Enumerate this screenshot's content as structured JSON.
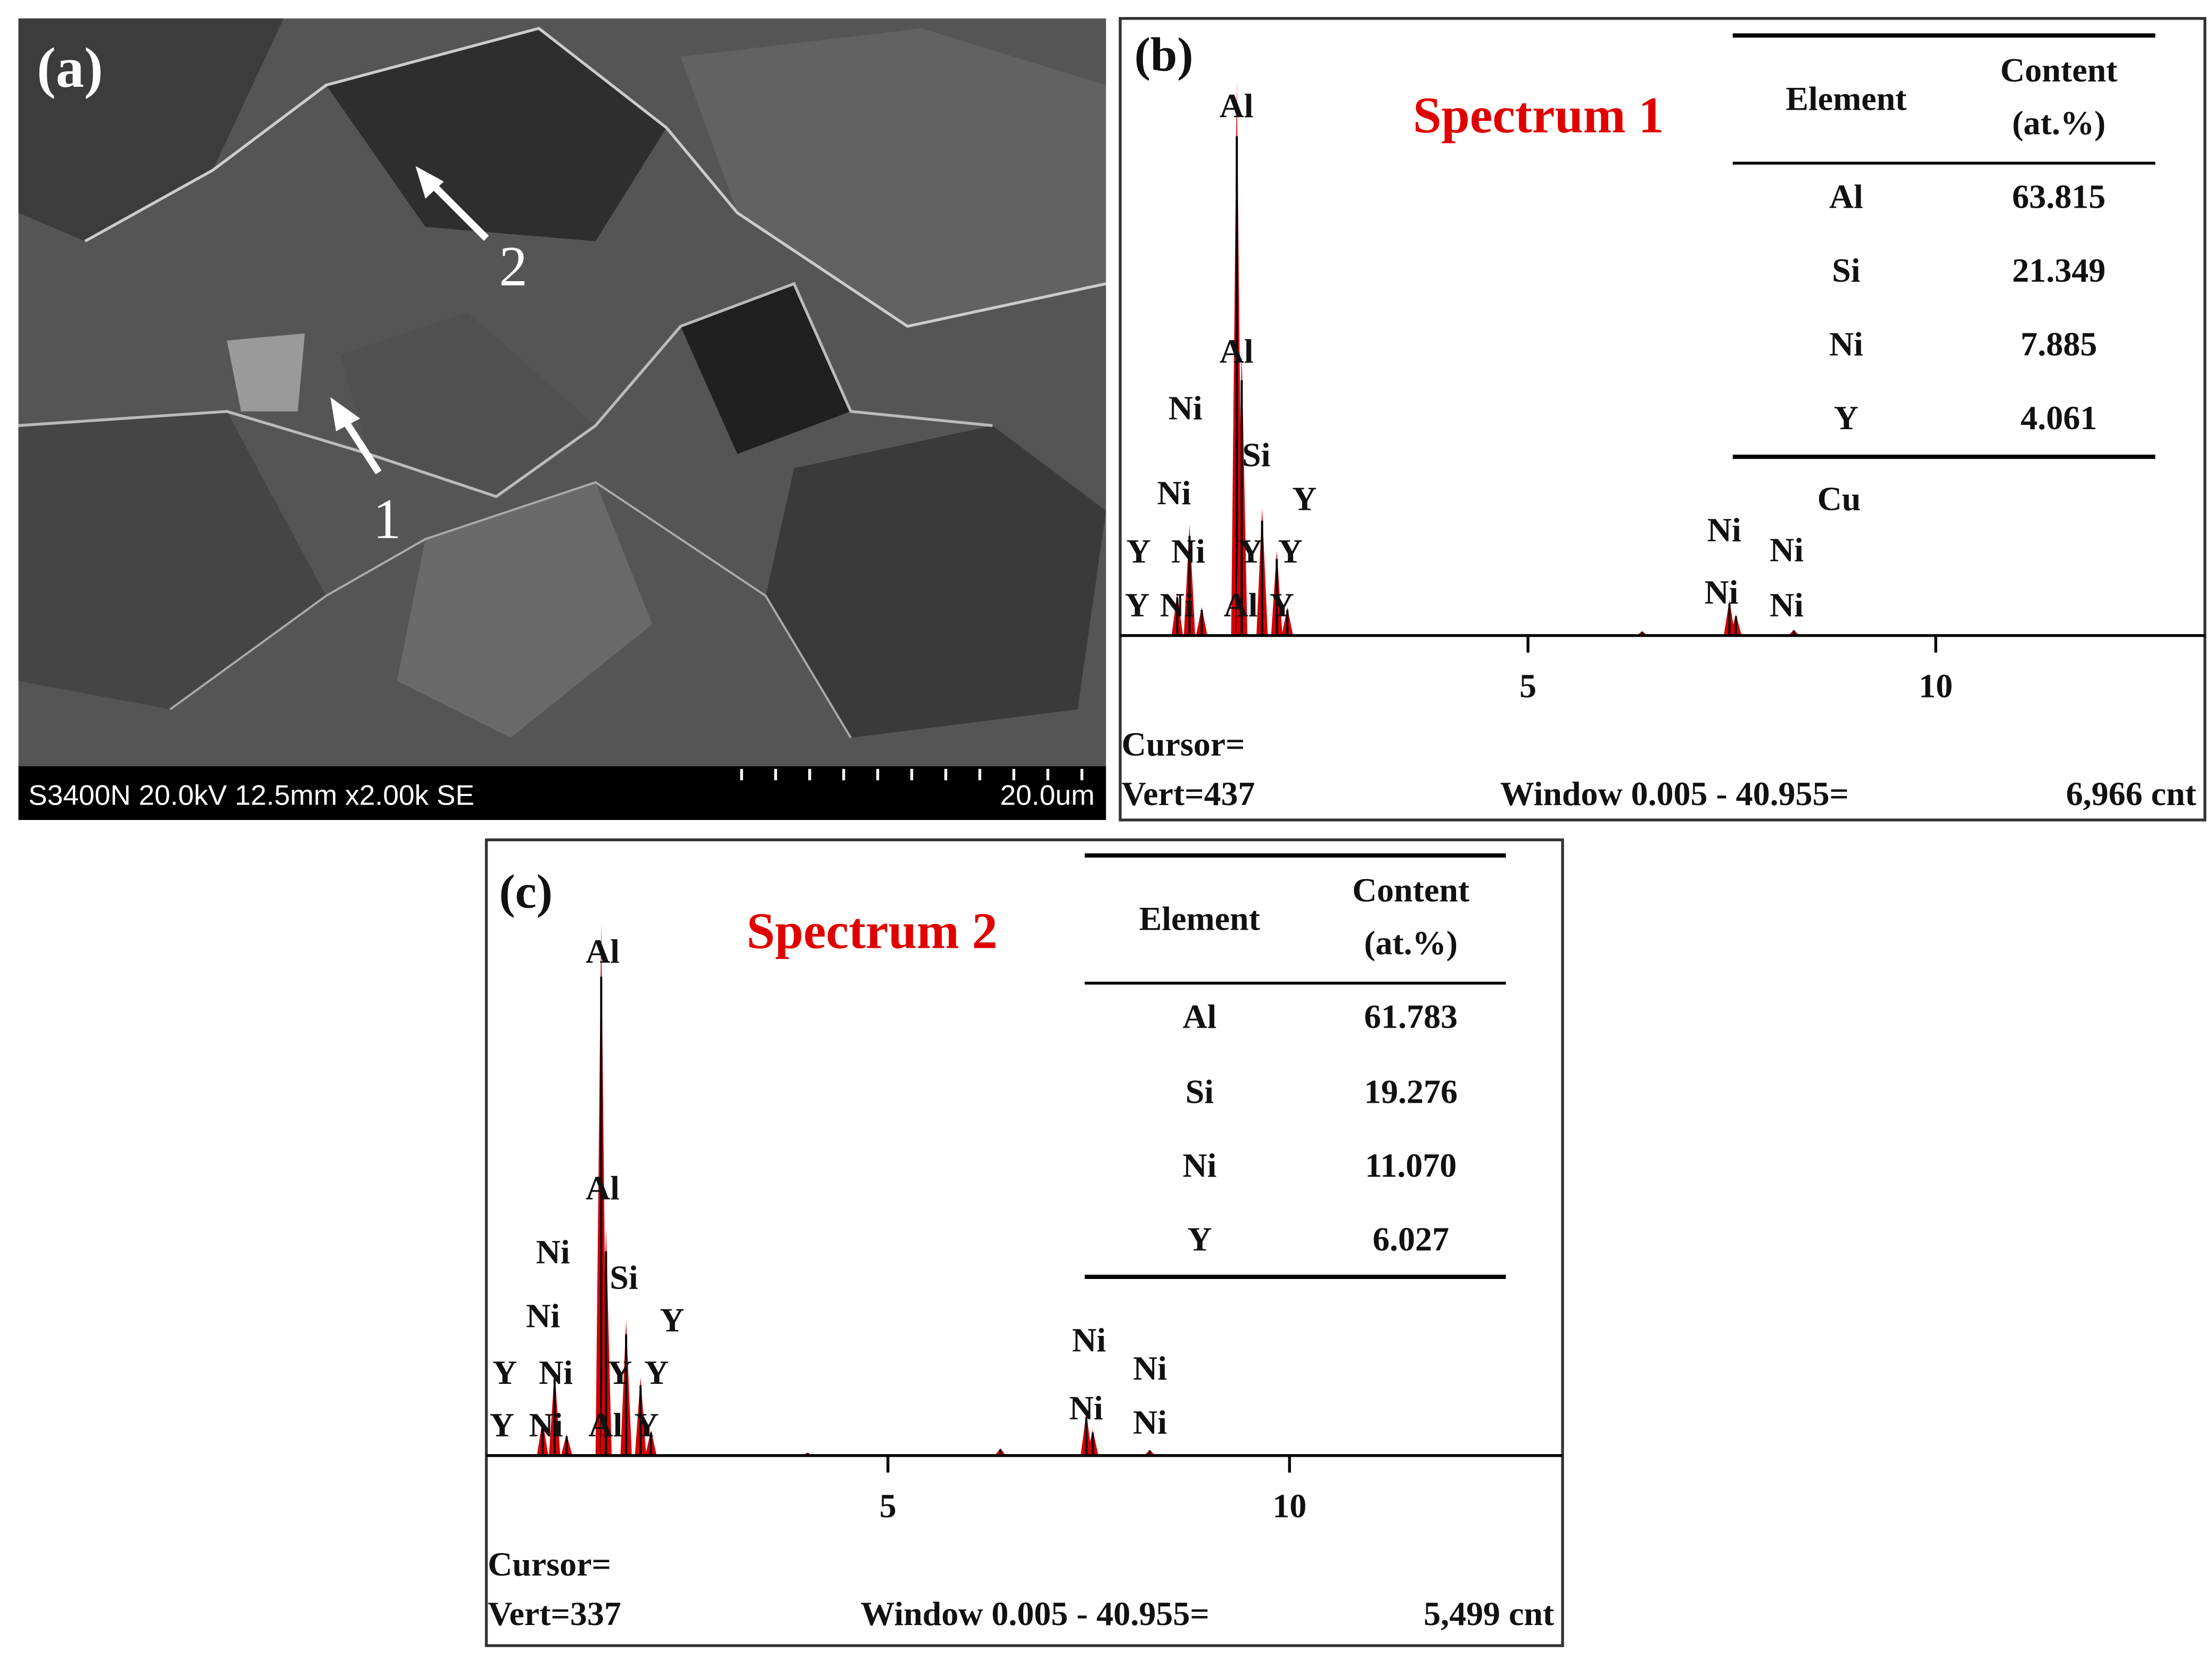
{
  "panel_a": {
    "label": "(a)",
    "markers": [
      "1",
      "2"
    ],
    "info": "S3400N 20.0kV 12.5mm x2.00k SE",
    "scale": "20.0um"
  },
  "panel_b": {
    "label": "(b)",
    "title": "Spectrum 1",
    "table": {
      "header": {
        "element": "Element",
        "content": [
          "Content",
          "(at.%)"
        ]
      },
      "rows": [
        [
          "Al",
          "63.815"
        ],
        [
          "Si",
          "21.349"
        ],
        [
          "Ni",
          "7.885"
        ],
        [
          "Y",
          "4.061"
        ]
      ]
    },
    "peak_labels": [
      "Al",
      "Al",
      "Ni",
      "Si",
      "Ni",
      "Y",
      "Y",
      "Ni",
      "Y",
      "Y",
      "Y",
      "Ni",
      "Al",
      "Y",
      "Ni",
      "Ni",
      "Cu",
      "Ni",
      "Ni"
    ],
    "xlim": [
      0,
      13.3
    ],
    "xticks": [
      5,
      10
    ],
    "cursor": "Cursor=",
    "vert": "Vert=437",
    "window": "Window 0.005 - 40.955=",
    "count": "6,966 cnt"
  },
  "panel_c": {
    "label": "(c)",
    "title": "Spectrum 2",
    "table": {
      "header": {
        "element": "Element",
        "content": [
          "Content",
          "(at.%)"
        ]
      },
      "rows": [
        [
          "Al",
          "61.783"
        ],
        [
          "Si",
          "19.276"
        ],
        [
          "Ni",
          "11.070"
        ],
        [
          "Y",
          "6.027"
        ]
      ]
    },
    "peak_labels": [
      "Al",
      "Al",
      "Ni",
      "Si",
      "Ni",
      "Y",
      "Y",
      "Ni",
      "Y",
      "Y",
      "Y",
      "Ni",
      "Al",
      "Y",
      "Ni",
      "Ni",
      "Ni",
      "Ni"
    ],
    "xlim": [
      0,
      13.4
    ],
    "xticks": [
      5,
      10
    ],
    "cursor": "Cursor=",
    "vert": "Vert=337",
    "window": "Window 0.005 - 40.955=",
    "count": "5,499 cnt"
  }
}
